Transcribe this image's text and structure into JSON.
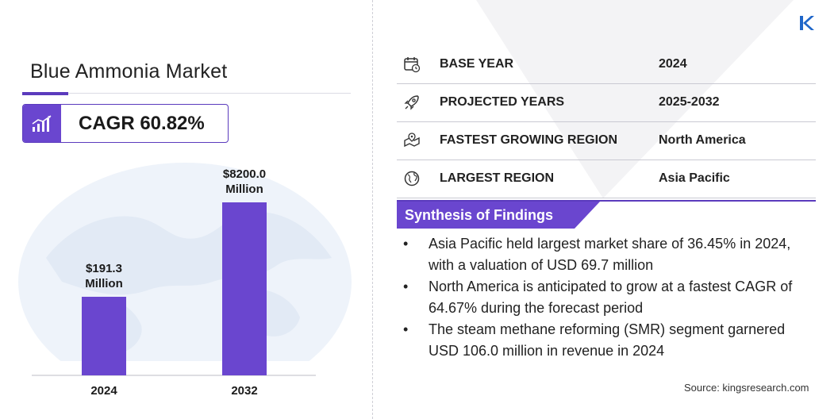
{
  "title": "Blue Ammonia Market",
  "cagr": {
    "label": "CAGR 60.82%",
    "icon": "growth-chart-icon"
  },
  "chart_data": {
    "type": "bar",
    "categories": [
      "2024",
      "2032"
    ],
    "values": [
      191.3,
      8200.0
    ],
    "value_labels": [
      [
        "$191.3",
        "Million"
      ],
      [
        "$8200.0",
        "Million"
      ]
    ],
    "unit": "USD Million",
    "title": "",
    "xlabel": "",
    "ylabel": "",
    "grid": false,
    "legend": "none",
    "bar_color": "#6a46cf"
  },
  "info": [
    {
      "icon": "calendar-icon",
      "label": "BASE YEAR",
      "value": "2024"
    },
    {
      "icon": "rocket-icon",
      "label": "PROJECTED YEARS",
      "value": "2025-2032"
    },
    {
      "icon": "region-map-icon",
      "label": "FASTEST GROWING REGION",
      "value": "North America"
    },
    {
      "icon": "globe-icon",
      "label": "LARGEST REGION",
      "value": "Asia Pacific"
    }
  ],
  "synthesis": {
    "heading": "Synthesis of Findings",
    "bullet": "•",
    "items": [
      "Asia Pacific held largest market share of 36.45% in 2024, with a valuation of USD 69.7 million",
      "North America is anticipated to grow at a fastest CAGR of 64.67% during the forecast period",
      "The steam methane reforming (SMR) segment garnered USD 106.0 million in revenue in 2024"
    ]
  },
  "source": "Source:  kingsresearch.com",
  "colors": {
    "accent": "#5b3bbd",
    "bar": "#6a46cf",
    "logo": "#1f66c9"
  }
}
